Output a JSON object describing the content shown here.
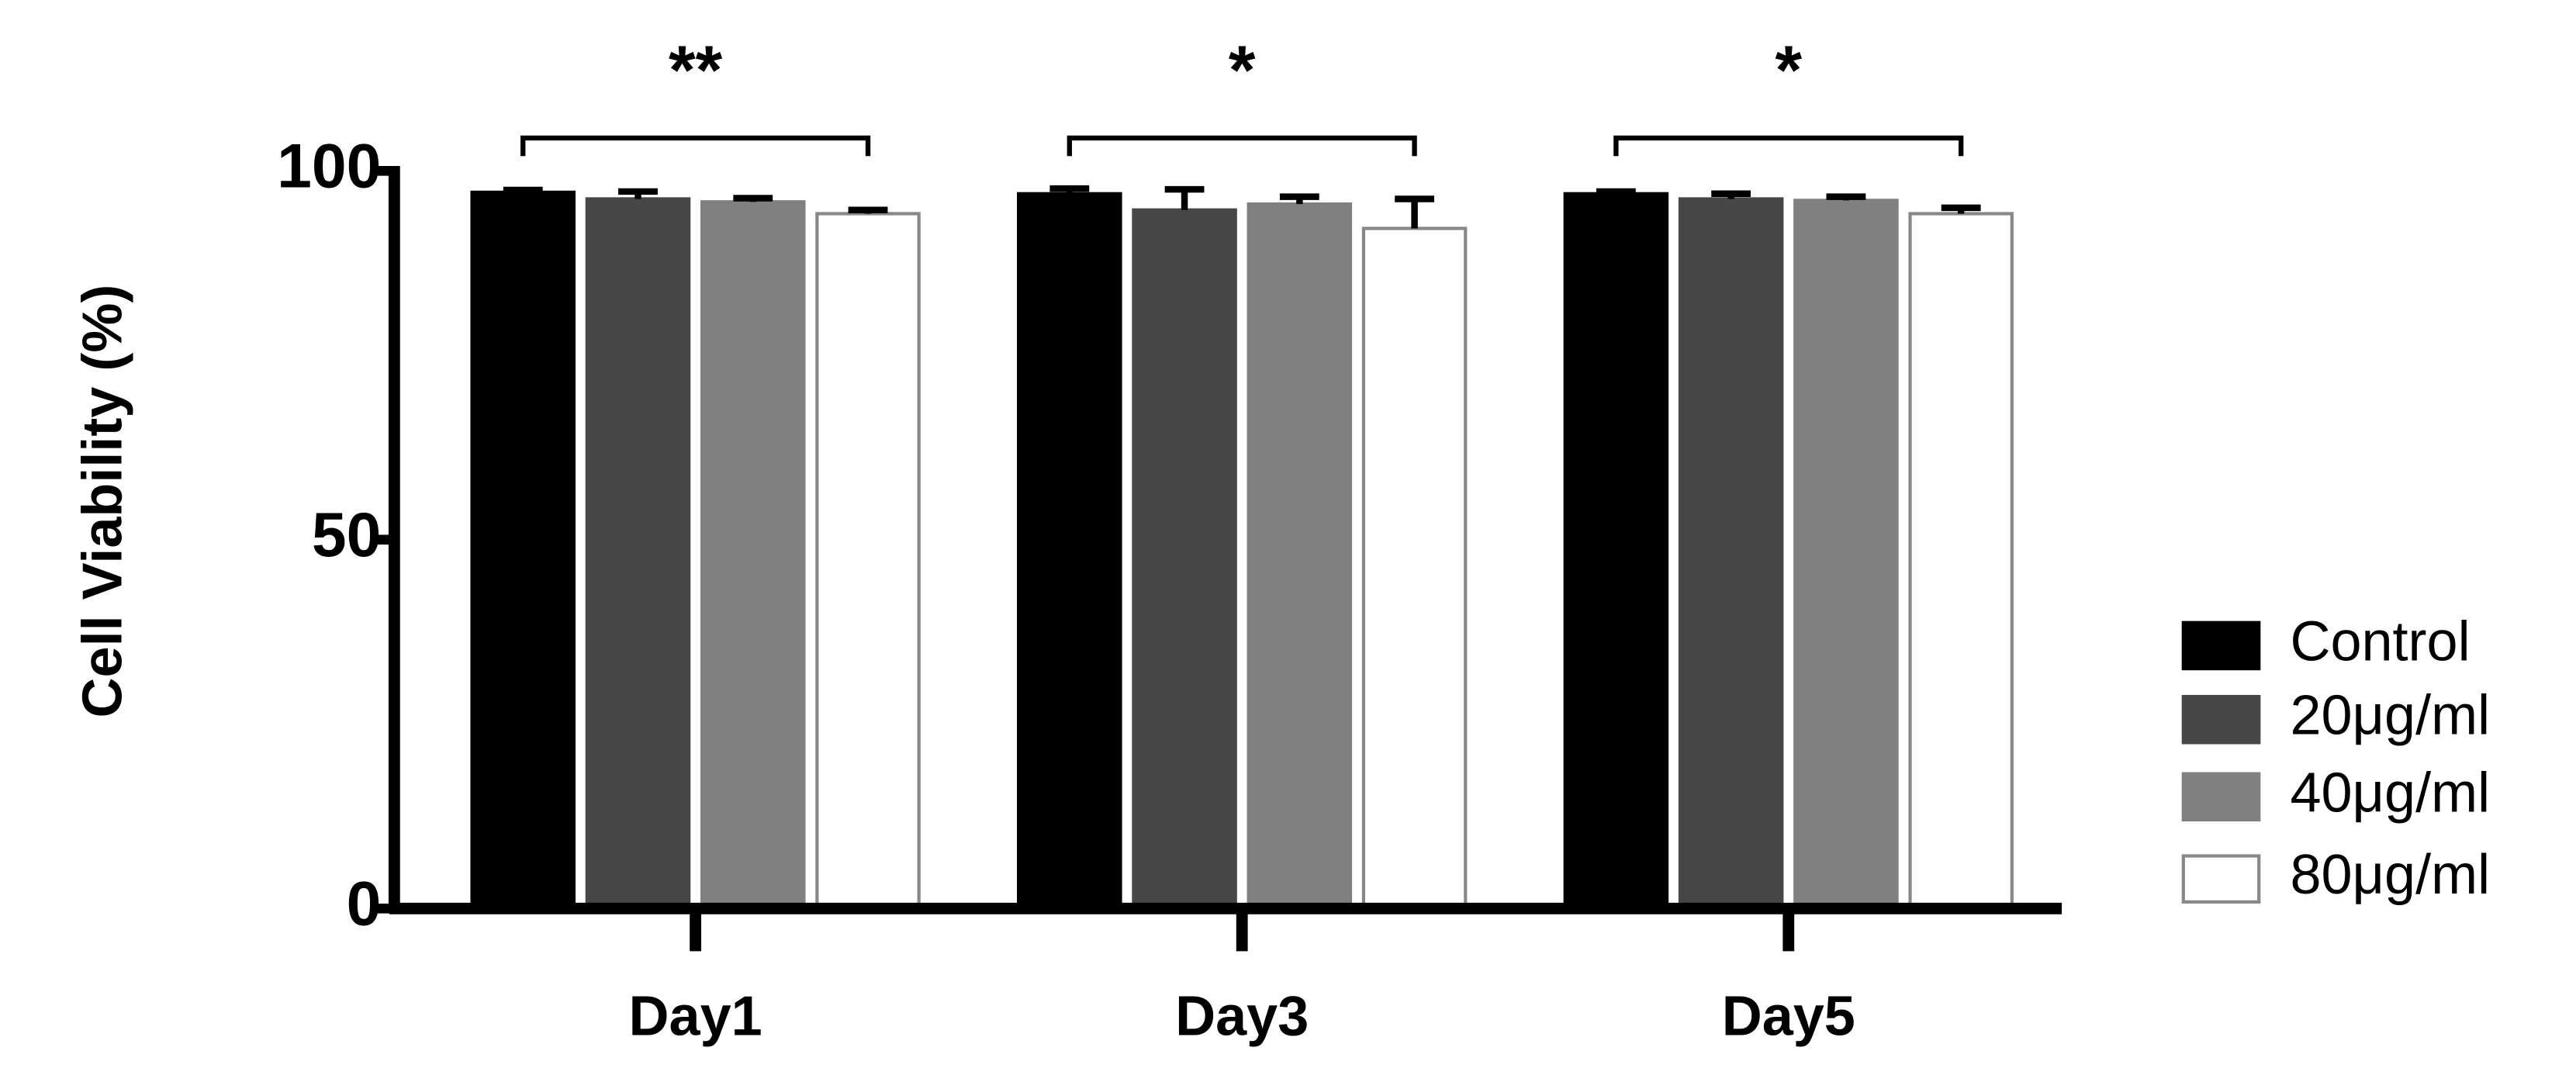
{
  "chart_data": {
    "type": "bar",
    "ylabel": "Cell Viability (%)",
    "categories": [
      "Day1",
      "Day3",
      "Day5"
    ],
    "series": [
      {
        "name": "Control",
        "color": "#000000",
        "values": [
          97.1,
          96.9,
          96.9
        ],
        "errors": [
          0.3,
          0.7,
          0.3
        ]
      },
      {
        "name": "20μg/ml",
        "color": "#474747",
        "values": [
          96.2,
          94.7,
          96.2
        ],
        "errors": [
          1.0,
          2.8,
          0.7
        ]
      },
      {
        "name": "40μg/ml",
        "color": "#808080",
        "values": [
          95.8,
          95.5,
          96.0
        ],
        "errors": [
          0.5,
          1.0,
          0.5
        ]
      },
      {
        "name": "80μg/ml",
        "color": "#ffffff",
        "values": [
          94.2,
          92.2,
          94.2
        ],
        "errors": [
          0.5,
          4.0,
          0.8
        ]
      }
    ],
    "annotations": [
      "**",
      "*",
      "*"
    ],
    "ylim": [
      0,
      100
    ],
    "yticks": [
      0,
      50,
      100
    ],
    "grid": false,
    "legend": "right"
  }
}
